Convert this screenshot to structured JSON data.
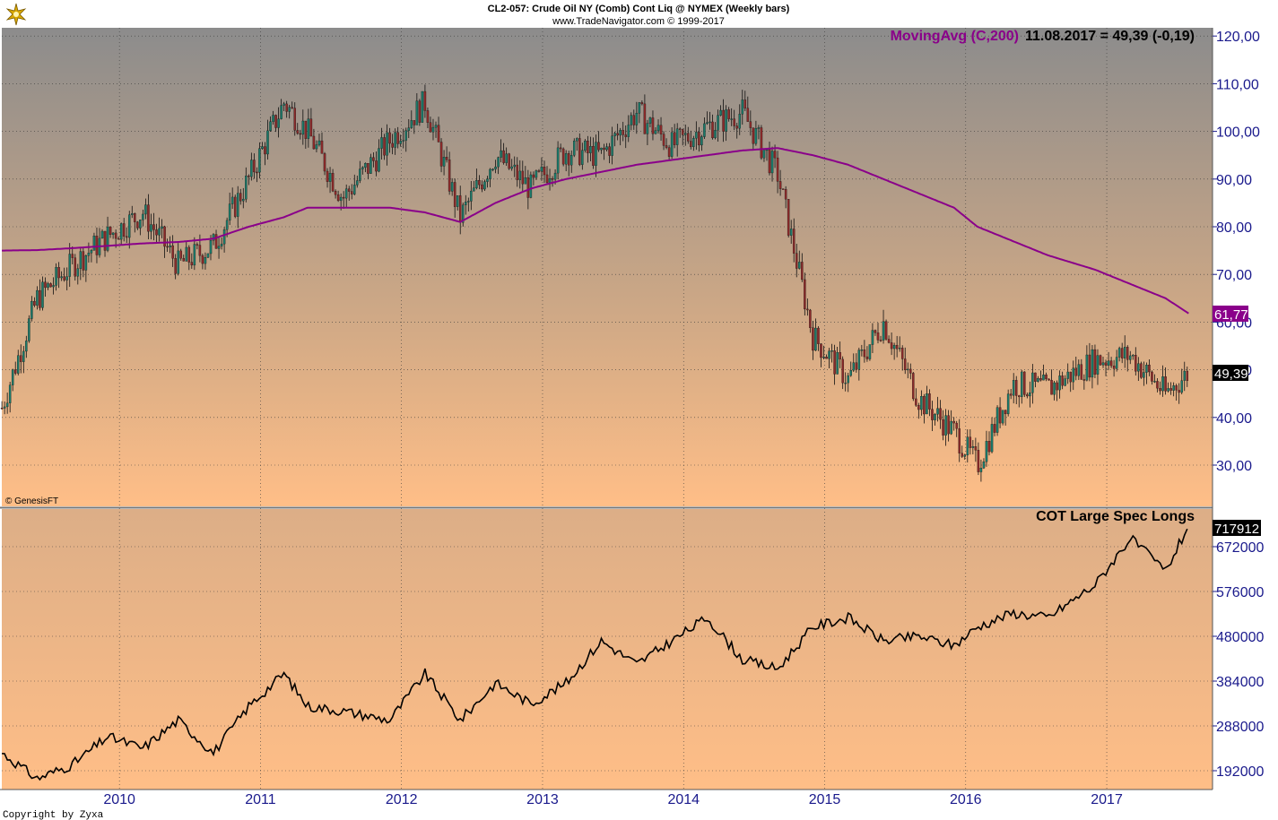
{
  "header": {
    "title": "CL2-057:  Crude Oil NY (Comb) Cont Liq @ NYMEX  (Weekly bars)",
    "subtitle": "www.TradeNavigator.com © 1999-2017"
  },
  "watermark": "© GenesisFT",
  "copyright": "Copyright by Zyxa",
  "colors": {
    "bg_top": "#8c8c8c",
    "bg_bottom": "#ffbe87",
    "ma": "#8a008a",
    "price_axis": "#1a1a8c",
    "candle_up": "#1b7a6a",
    "candle_down": "#8c2a2a"
  },
  "price_panel": {
    "ma_legend_name": "MovingAvg (C,200)",
    "ma_legend_value": "11.08.2017 = 49,39 (-0,19)",
    "ma_last_label": "61,77",
    "price_last_label": "49,39",
    "y_ticks": [
      "120,00",
      "110,00",
      "100,00",
      "90,00",
      "80,00",
      "70,00",
      "60,00",
      "50,00",
      "40,00",
      "30,00"
    ]
  },
  "cot_panel": {
    "label": "COT Large Spec Longs",
    "last_label": "717912",
    "y_ticks": [
      "672000",
      "576000",
      "480000",
      "384000",
      "288000",
      "192000"
    ]
  },
  "x_axis": {
    "labels": [
      "2010",
      "2011",
      "2012",
      "2013",
      "2014",
      "2015",
      "2016",
      "2017"
    ]
  },
  "chart_data": [
    {
      "type": "line",
      "title": "CL2-057:  Crude Oil NY (Comb) Cont Liq @ NYMEX  (Weekly bars)",
      "ylim": [
        22,
        123
      ],
      "x": [
        "2009-03",
        "2009-06",
        "2009-09",
        "2009-12",
        "2010-03",
        "2010-06",
        "2010-09",
        "2010-12",
        "2011-03",
        "2011-05",
        "2011-08",
        "2011-12",
        "2012-03",
        "2012-06",
        "2012-09",
        "2012-12",
        "2013-03",
        "2013-06",
        "2013-09",
        "2013-12",
        "2014-03",
        "2014-06",
        "2014-09",
        "2014-12",
        "2015-03",
        "2015-06",
        "2015-09",
        "2015-12",
        "2016-02",
        "2016-05",
        "2016-08",
        "2016-12",
        "2017-03",
        "2017-06",
        "2017-08"
      ],
      "series": [
        {
          "name": "Price",
          "values": [
            42,
            65,
            72,
            78,
            83,
            72,
            76,
            90,
            106,
            100,
            86,
            98,
            106,
            82,
            95,
            88,
            96,
            95,
            104,
            97,
            101,
            104,
            91,
            57,
            48,
            60,
            44,
            37,
            30,
            47,
            46,
            52,
            53,
            45,
            49.39
          ]
        },
        {
          "name": "MovingAvg (C,200)",
          "values": [
            75,
            75.1,
            75.5,
            76,
            76.5,
            76.8,
            77.5,
            80,
            82,
            84,
            84,
            84,
            83,
            81,
            85,
            88,
            90,
            91.5,
            93,
            94,
            95,
            96,
            96.5,
            95,
            93,
            90,
            87,
            84,
            80,
            77,
            74,
            71,
            68,
            65,
            61.77
          ]
        }
      ]
    },
    {
      "type": "line",
      "title": "COT Large Spec Longs",
      "ylim": [
        150000,
        750000
      ],
      "x": [
        "2009-03",
        "2009-06",
        "2009-09",
        "2009-12",
        "2010-03",
        "2010-06",
        "2010-09",
        "2010-12",
        "2011-03",
        "2011-05",
        "2011-08",
        "2011-12",
        "2012-03",
        "2012-06",
        "2012-09",
        "2012-12",
        "2013-03",
        "2013-06",
        "2013-09",
        "2013-12",
        "2014-03",
        "2014-06",
        "2014-09",
        "2014-12",
        "2015-03",
        "2015-06",
        "2015-09",
        "2015-12",
        "2016-02",
        "2016-05",
        "2016-08",
        "2016-12",
        "2017-03",
        "2017-06",
        "2017-08"
      ],
      "series": [
        {
          "name": "COT Large Spec Longs",
          "values": [
            230000,
            175000,
            205000,
            265000,
            240000,
            300000,
            230000,
            330000,
            400000,
            330000,
            320000,
            300000,
            400000,
            300000,
            380000,
            335000,
            380000,
            470000,
            420000,
            470000,
            520000,
            430000,
            410000,
            500000,
            520000,
            470000,
            480000,
            460000,
            500000,
            530000,
            520000,
            590000,
            690000,
            620000,
            717912
          ]
        }
      ]
    }
  ]
}
